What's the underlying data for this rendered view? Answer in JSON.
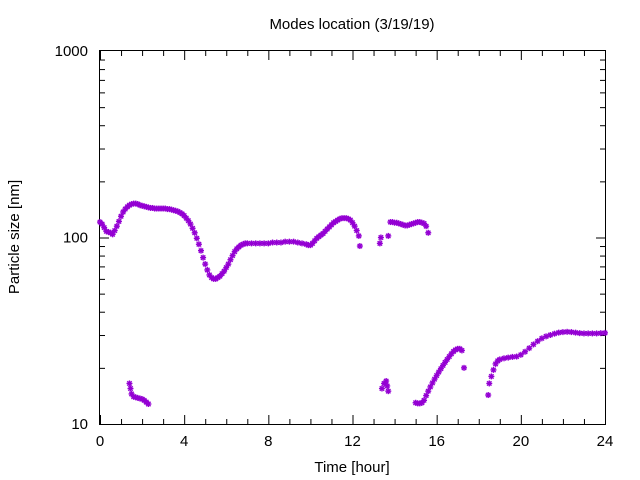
{
  "chart_data": {
    "type": "scatter",
    "title": "Modes location (3/19/19)",
    "xlabel": "Time [hour]",
    "ylabel": "Particle size [nm]",
    "xlim": [
      0,
      24
    ],
    "ylim": [
      10,
      1000
    ],
    "yscale": "log",
    "xticks": [
      0,
      4,
      8,
      12,
      16,
      20,
      24
    ],
    "xtick_labels": [
      "0",
      "4",
      "8",
      "12",
      "16",
      "20",
      "24"
    ],
    "yticks": [
      10,
      100,
      1000
    ],
    "ytick_labels": [
      "10",
      "100",
      "1000"
    ],
    "grid": false,
    "marker_color": "#9400D3",
    "series": [
      {
        "points": [
          [
            0.0,
            121
          ],
          [
            0.1,
            118
          ],
          [
            0.2,
            113
          ],
          [
            0.3,
            108
          ],
          [
            0.4,
            107
          ],
          [
            0.5,
            106
          ],
          [
            0.6,
            104
          ],
          [
            0.7,
            109
          ],
          [
            0.8,
            115
          ],
          [
            0.9,
            122
          ],
          [
            1.0,
            130
          ],
          [
            1.1,
            137
          ],
          [
            1.2,
            142
          ],
          [
            1.3,
            146
          ],
          [
            1.4,
            149
          ],
          [
            1.5,
            151
          ],
          [
            1.6,
            152
          ],
          [
            1.7,
            152
          ],
          [
            1.8,
            151
          ],
          [
            1.9,
            149
          ],
          [
            2.0,
            148
          ],
          [
            2.1,
            147
          ],
          [
            2.2,
            146
          ],
          [
            2.3,
            145
          ],
          [
            2.4,
            144
          ],
          [
            2.5,
            144
          ],
          [
            2.6,
            143
          ],
          [
            2.7,
            143
          ],
          [
            2.8,
            143
          ],
          [
            2.9,
            143
          ],
          [
            3.0,
            143
          ],
          [
            3.1,
            143
          ],
          [
            3.2,
            142
          ],
          [
            3.3,
            142
          ],
          [
            3.4,
            141
          ],
          [
            3.5,
            140
          ],
          [
            3.6,
            139
          ],
          [
            3.7,
            138
          ],
          [
            3.8,
            136
          ],
          [
            3.9,
            134
          ],
          [
            4.0,
            131
          ],
          [
            4.1,
            127
          ],
          [
            4.2,
            123
          ],
          [
            4.3,
            118
          ],
          [
            4.4,
            112
          ],
          [
            4.5,
            106
          ],
          [
            4.6,
            99
          ],
          [
            4.7,
            92
          ],
          [
            4.8,
            85
          ],
          [
            4.9,
            78
          ],
          [
            5.0,
            72
          ],
          [
            5.1,
            67
          ],
          [
            5.2,
            63
          ],
          [
            5.3,
            61
          ],
          [
            5.4,
            60
          ],
          [
            5.5,
            60
          ],
          [
            5.6,
            61
          ],
          [
            5.7,
            62
          ],
          [
            5.8,
            64
          ],
          [
            5.9,
            66
          ],
          [
            6.0,
            69
          ],
          [
            6.1,
            72
          ],
          [
            6.2,
            76
          ],
          [
            6.3,
            80
          ],
          [
            6.4,
            84
          ],
          [
            6.5,
            87
          ],
          [
            6.6,
            89
          ],
          [
            6.7,
            91
          ],
          [
            6.8,
            92
          ],
          [
            6.9,
            93
          ],
          [
            7.0,
            93
          ],
          [
            7.2,
            93
          ],
          [
            7.4,
            93
          ],
          [
            7.6,
            93
          ],
          [
            7.8,
            93
          ],
          [
            8.0,
            93
          ],
          [
            8.2,
            94
          ],
          [
            8.4,
            94
          ],
          [
            8.6,
            94
          ],
          [
            8.8,
            95
          ],
          [
            9.0,
            95
          ],
          [
            9.2,
            95
          ],
          [
            9.4,
            94
          ],
          [
            9.6,
            93
          ],
          [
            9.8,
            92
          ],
          [
            9.9,
            91
          ],
          [
            10.0,
            91
          ],
          [
            10.1,
            93
          ],
          [
            10.2,
            96
          ],
          [
            10.3,
            99
          ],
          [
            10.4,
            101
          ],
          [
            10.5,
            103
          ],
          [
            10.6,
            105
          ],
          [
            10.7,
            108
          ],
          [
            10.8,
            111
          ],
          [
            10.9,
            114
          ],
          [
            11.0,
            117
          ],
          [
            11.1,
            120
          ],
          [
            11.2,
            122
          ],
          [
            11.3,
            124
          ],
          [
            11.4,
            126
          ],
          [
            11.5,
            127
          ],
          [
            11.6,
            127
          ],
          [
            11.7,
            127
          ],
          [
            11.8,
            126
          ],
          [
            11.9,
            124
          ],
          [
            12.0,
            120
          ],
          [
            12.1,
            115
          ],
          [
            12.2,
            109
          ],
          [
            12.3,
            102
          ],
          [
            12.35,
            90
          ]
        ]
      },
      {
        "points": [
          [
            13.3,
            93
          ],
          [
            13.35,
            100
          ],
          [
            13.7,
            102
          ],
          [
            13.8,
            121
          ],
          [
            13.9,
            121
          ],
          [
            14.0,
            120
          ],
          [
            14.1,
            120
          ],
          [
            14.2,
            119
          ],
          [
            14.3,
            118
          ],
          [
            14.4,
            117
          ],
          [
            14.5,
            116
          ],
          [
            14.6,
            116
          ],
          [
            14.7,
            117
          ],
          [
            14.8,
            118
          ],
          [
            14.9,
            119
          ],
          [
            15.0,
            120
          ],
          [
            15.1,
            121
          ],
          [
            15.2,
            121
          ],
          [
            15.3,
            120
          ],
          [
            15.4,
            119
          ],
          [
            15.5,
            115
          ],
          [
            15.6,
            106
          ]
        ]
      },
      {
        "points": [
          [
            1.4,
            16.5
          ],
          [
            1.45,
            15.5
          ],
          [
            1.5,
            14.5
          ],
          [
            1.6,
            14.0
          ],
          [
            1.7,
            13.9
          ],
          [
            1.8,
            13.8
          ],
          [
            1.9,
            13.7
          ],
          [
            2.0,
            13.6
          ],
          [
            2.1,
            13.4
          ],
          [
            2.2,
            13.1
          ],
          [
            2.3,
            12.8
          ]
        ]
      },
      {
        "points": [
          [
            13.4,
            15.5
          ],
          [
            13.5,
            16.5
          ],
          [
            13.6,
            17.0
          ],
          [
            13.65,
            16.0
          ],
          [
            13.7,
            15.0
          ]
        ]
      },
      {
        "points": [
          [
            15.0,
            13.0
          ],
          [
            15.1,
            12.9
          ],
          [
            15.2,
            12.9
          ],
          [
            15.3,
            13.0
          ],
          [
            15.4,
            13.4
          ],
          [
            15.5,
            14.2
          ],
          [
            15.6,
            15.0
          ],
          [
            15.7,
            15.8
          ],
          [
            15.8,
            16.6
          ],
          [
            15.9,
            17.4
          ],
          [
            16.0,
            18.2
          ],
          [
            16.1,
            19.0
          ],
          [
            16.2,
            19.8
          ],
          [
            16.3,
            20.6
          ],
          [
            16.4,
            21.4
          ],
          [
            16.5,
            22.2
          ],
          [
            16.6,
            23.0
          ],
          [
            16.7,
            23.8
          ],
          [
            16.8,
            24.5
          ],
          [
            16.9,
            25.0
          ],
          [
            17.0,
            25.3
          ],
          [
            17.1,
            25.3
          ],
          [
            17.2,
            24.8
          ],
          [
            17.3,
            20.0
          ]
        ]
      },
      {
        "points": [
          [
            18.45,
            14.3
          ],
          [
            18.5,
            16.5
          ],
          [
            18.6,
            18.0
          ],
          [
            18.7,
            19.5
          ],
          [
            18.8,
            21.0
          ],
          [
            18.9,
            21.8
          ],
          [
            19.0,
            22.2
          ],
          [
            19.2,
            22.5
          ],
          [
            19.4,
            22.7
          ],
          [
            19.6,
            22.9
          ],
          [
            19.8,
            23.0
          ],
          [
            20.0,
            23.5
          ],
          [
            20.2,
            24.4
          ],
          [
            20.4,
            25.5
          ],
          [
            20.6,
            26.7
          ],
          [
            20.8,
            27.8
          ],
          [
            21.0,
            28.8
          ],
          [
            21.2,
            29.5
          ],
          [
            21.4,
            30.0
          ],
          [
            21.6,
            30.5
          ],
          [
            21.8,
            30.9
          ],
          [
            22.0,
            31.1
          ],
          [
            22.2,
            31.2
          ],
          [
            22.4,
            31.1
          ],
          [
            22.6,
            30.9
          ],
          [
            22.8,
            30.7
          ],
          [
            23.0,
            30.6
          ],
          [
            23.2,
            30.6
          ],
          [
            23.4,
            30.6
          ],
          [
            23.6,
            30.6
          ],
          [
            23.8,
            30.7
          ],
          [
            24.0,
            30.8
          ]
        ]
      }
    ]
  }
}
